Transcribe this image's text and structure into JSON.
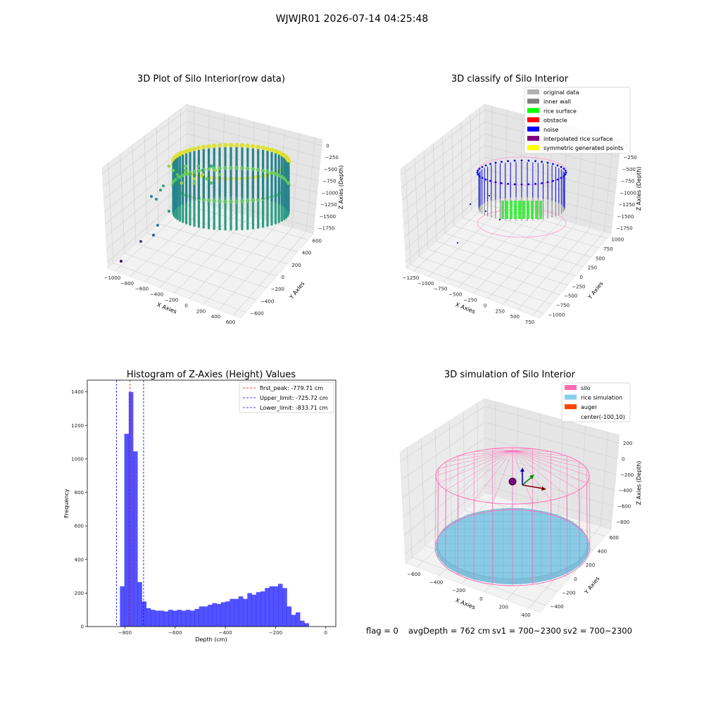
{
  "suptitle": "WJWJR01 2026-07-14 04:25:48",
  "footer": {
    "flag": "flag = 0",
    "avg_depth": "avgDepth = 762 cm",
    "sv1": "sv1 = 700~2300",
    "sv2": "sv2 = 700~2300"
  },
  "chart_data": [
    {
      "type": "scatter",
      "projection": "3d",
      "title": "3D Plot of Silo Interior(row data)",
      "xlabel": "X Axies",
      "ylabel": "Y Axies",
      "zlabel": "Z Axies (Depth)",
      "x_ticks": [
        "−1000",
        "−800",
        "−600",
        "−400",
        "−200",
        "0",
        "200",
        "400",
        "600"
      ],
      "y_ticks": [
        "−600",
        "−400",
        "−200",
        "0",
        "200",
        "400",
        "600"
      ],
      "z_ticks": [
        "0",
        "−250",
        "−500",
        "−750",
        "−1000",
        "−1250",
        "−1500",
        "−1750"
      ],
      "xlim": [
        -1000,
        600
      ],
      "ylim": [
        -600,
        600
      ],
      "zlim": [
        -1750,
        0
      ],
      "colormap": "viridis",
      "grid": true
    },
    {
      "type": "scatter",
      "projection": "3d",
      "title": "3D classify of Silo Interior",
      "xlabel": "X Axies",
      "ylabel": "Y Axies",
      "zlabel": "Z Axies (Depth)",
      "x_ticks": [
        "−1250",
        "−1000",
        "−750",
        "−500",
        "−250",
        "0",
        "250",
        "500",
        "750"
      ],
      "y_ticks": [
        "−1000",
        "−750",
        "−500",
        "−250",
        "0",
        "250",
        "500",
        "750",
        "1000"
      ],
      "z_ticks": [
        "0",
        "−250",
        "−500",
        "−750",
        "−1000",
        "−1250",
        "−1500",
        "−1750"
      ],
      "xlim": [
        -1250,
        750
      ],
      "ylim": [
        -1000,
        1000
      ],
      "zlim": [
        -1750,
        0
      ],
      "legend_position": "top-right",
      "legend": [
        {
          "label": "original data",
          "color": "#b3b3b3"
        },
        {
          "label": "inner wall",
          "color": "#808080"
        },
        {
          "label": "rice surface",
          "color": "#00ff00"
        },
        {
          "label": "obstacle",
          "color": "#ff0000"
        },
        {
          "label": "noise",
          "color": "#0000ff"
        },
        {
          "label": "interpolated rice surface",
          "color": "#800080"
        },
        {
          "label": "symmetric generated points",
          "color": "#ffff00"
        }
      ],
      "grid": true
    },
    {
      "type": "bar",
      "title": "Histogram of Z-Axies (Height) Values",
      "xlabel": "Depth (cm)",
      "ylabel": "Frequency",
      "xlim": [
        -950,
        40
      ],
      "ylim": [
        0,
        1470
      ],
      "x_ticks": [
        -800,
        -600,
        -400,
        -200,
        0
      ],
      "x_tick_labels": [
        "−800",
        "−600",
        "−400",
        "−200",
        "0"
      ],
      "y_ticks": [
        0,
        200,
        400,
        600,
        800,
        1000,
        1200,
        1400
      ],
      "y_tick_labels": [
        "0",
        "200",
        "400",
        "600",
        "800",
        "1000",
        "1200",
        "1400"
      ],
      "bin_start": -820,
      "bin_width": 17.5,
      "values": [
        240,
        1150,
        1400,
        1045,
        265,
        150,
        110,
        100,
        95,
        95,
        90,
        100,
        95,
        100,
        95,
        100,
        95,
        105,
        120,
        120,
        130,
        140,
        135,
        145,
        150,
        165,
        165,
        180,
        165,
        200,
        190,
        205,
        210,
        230,
        240,
        240,
        255,
        230,
        120,
        70,
        85,
        35,
        20
      ],
      "bar_color": "#0000ff",
      "vlines": [
        {
          "label": "first_peak: -779.71 cm",
          "x": -779.71,
          "color": "#ff0000"
        },
        {
          "label": "Upper_limit: -725.72 cm",
          "x": -725.72,
          "color": "#0000ff"
        },
        {
          "label": "Lower_limit: -833.71 cm",
          "x": -833.71,
          "color": "#0000ff"
        }
      ],
      "legend_position": "top-right"
    },
    {
      "type": "surface",
      "projection": "3d",
      "title": "3D simulation of Silo Interior",
      "xlabel": "X Axies",
      "ylabel": "Y Axies",
      "zlabel": "Z Axies (Depth)",
      "x_ticks": [
        "−600",
        "−400",
        "−200",
        "0",
        "200",
        "400"
      ],
      "y_ticks": [
        "−400",
        "−200",
        "0",
        "200",
        "400",
        "600"
      ],
      "z_ticks": [
        "200",
        "0",
        "−200",
        "−400",
        "−600",
        "−800"
      ],
      "xlim": [
        -700,
        500
      ],
      "ylim": [
        -500,
        650
      ],
      "zlim": [
        -850,
        300
      ],
      "legend_position": "top-right",
      "legend": [
        {
          "label": "silo",
          "color": "#ff69b4"
        },
        {
          "label": "rice simulation",
          "color": "#87ceeb"
        },
        {
          "label": "auger",
          "color": "#ff4500"
        },
        {
          "label": "center(-100,10)",
          "color": ""
        }
      ],
      "grid": true
    }
  ]
}
